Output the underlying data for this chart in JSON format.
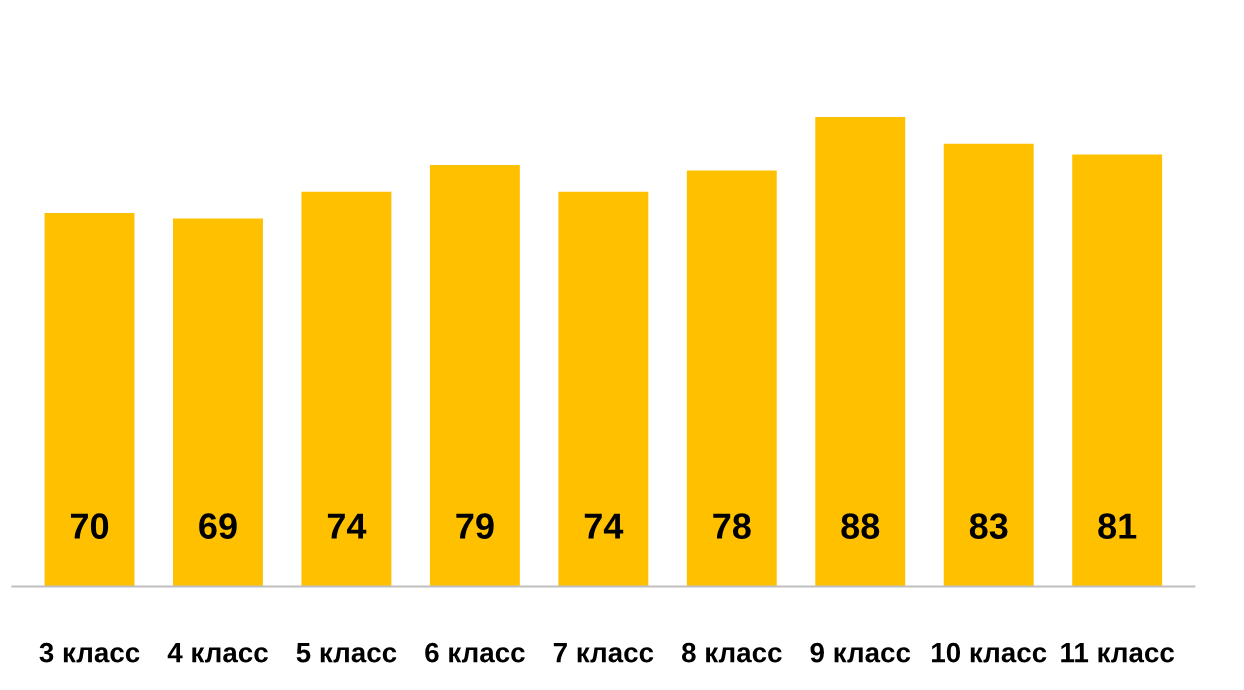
{
  "chart_data": {
    "type": "bar",
    "categories": [
      "3 класс",
      "4 класс",
      "5 класс",
      "6 класс",
      "7 класс",
      "8 класс",
      "9 класс",
      "10 класс",
      "11 класс"
    ],
    "values": [
      70,
      69,
      74,
      79,
      74,
      78,
      88,
      83,
      81
    ],
    "color": "#ffc000",
    "data_labels": true,
    "tick_labels": "x",
    "grid": false,
    "legend": false
  }
}
